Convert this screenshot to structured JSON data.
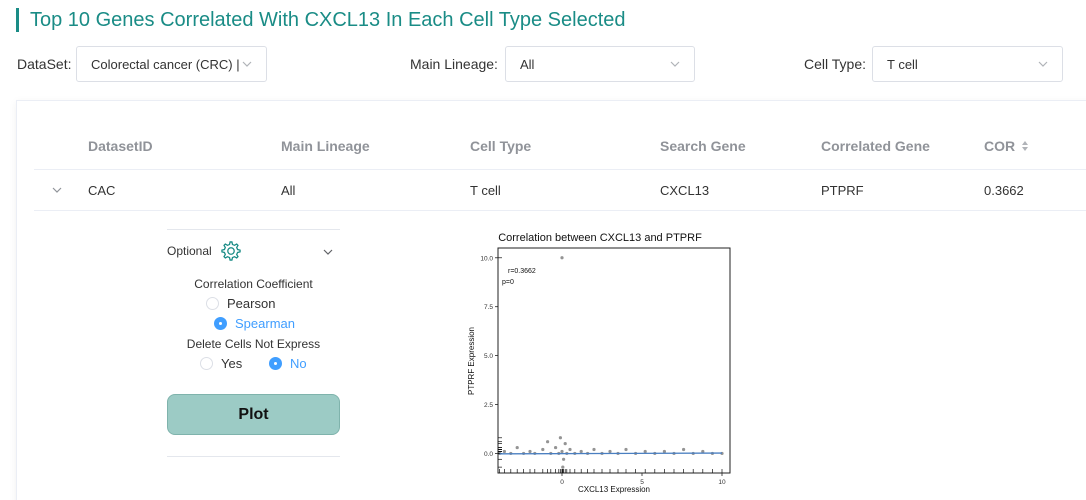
{
  "title": "Top 10 Genes Correlated With CXCL13 In Each Cell Type Selected",
  "filters": {
    "dataset_label": "DataSet:",
    "dataset_value": "Colorectal cancer (CRC) |",
    "lineage_label": "Main Lineage:",
    "lineage_value": "All",
    "celltype_label": "Cell Type:",
    "celltype_value": "T cell"
  },
  "table": {
    "headers": [
      "DatasetID",
      "Main Lineage",
      "Cell Type",
      "Search Gene",
      "Correlated Gene",
      "COR"
    ],
    "rows": [
      [
        "CAC",
        "All",
        "T cell",
        "CXCL13",
        "PTPRF",
        "0.3662"
      ]
    ]
  },
  "options": {
    "optional_label": "Optional",
    "corr_title": "Correlation Coefficient",
    "pearson_label": "Pearson",
    "spearman_label": "Spearman",
    "corr_selected": "Spearman",
    "delete_title": "Delete Cells Not Express",
    "yes_label": "Yes",
    "no_label": "No",
    "delete_selected": "No",
    "plot_label": "Plot"
  },
  "colors": {
    "accent": "#1a8c86",
    "radio_on": "#409eff",
    "plot_button": "#9ccbc5",
    "fit_line": "#4a7fc1"
  },
  "chart_data": {
    "type": "scatter",
    "title": "Correlation between CXCL13 and PTPRF",
    "xlabel": "CXCL13 Expression",
    "ylabel": "PTPRF Expression",
    "annotation_r": "r=0.3662",
    "annotation_p": "p=0",
    "xlim": [
      -4,
      10.5
    ],
    "ylim": [
      -1,
      10.5
    ],
    "x_ticks": [
      0,
      5,
      10
    ],
    "y_ticks": [
      0.0,
      2.5,
      5.0,
      7.5,
      10.0
    ],
    "y_tick_labels": [
      "0.0",
      "2.5",
      "5.0",
      "7.5",
      "10.0"
    ],
    "points": [
      [
        -3.9,
        0
      ],
      [
        -3.6,
        0.1
      ],
      [
        -3.2,
        0
      ],
      [
        -2.8,
        0.3
      ],
      [
        -2.4,
        0
      ],
      [
        -2,
        0.1
      ],
      [
        -1.7,
        0
      ],
      [
        -1.2,
        0.2
      ],
      [
        -0.9,
        0.6
      ],
      [
        -0.7,
        0
      ],
      [
        -0.4,
        0.3
      ],
      [
        -0.2,
        0
      ],
      [
        0,
        0.1
      ],
      [
        0.1,
        -0.3
      ],
      [
        0.2,
        0.5
      ],
      [
        0.3,
        0
      ],
      [
        0.5,
        0.2
      ],
      [
        0.8,
        0
      ],
      [
        1.2,
        0.1
      ],
      [
        1.6,
        0
      ],
      [
        2,
        0.2
      ],
      [
        2.5,
        0
      ],
      [
        3,
        0.1
      ],
      [
        3.5,
        0
      ],
      [
        4,
        0.2
      ],
      [
        4.6,
        0
      ],
      [
        5.2,
        0.1
      ],
      [
        5.8,
        0
      ],
      [
        6.4,
        0.1
      ],
      [
        7,
        0
      ],
      [
        7.6,
        0.2
      ],
      [
        8.2,
        0
      ],
      [
        8.8,
        0.1
      ],
      [
        9.4,
        0
      ],
      [
        10,
        0
      ],
      [
        0,
        10.0
      ],
      [
        -0.1,
        0.8
      ],
      [
        0.05,
        -0.7
      ]
    ],
    "fit_line": [
      [
        -3.9,
        -0.02
      ],
      [
        10,
        0.02
      ]
    ],
    "grid": false
  }
}
